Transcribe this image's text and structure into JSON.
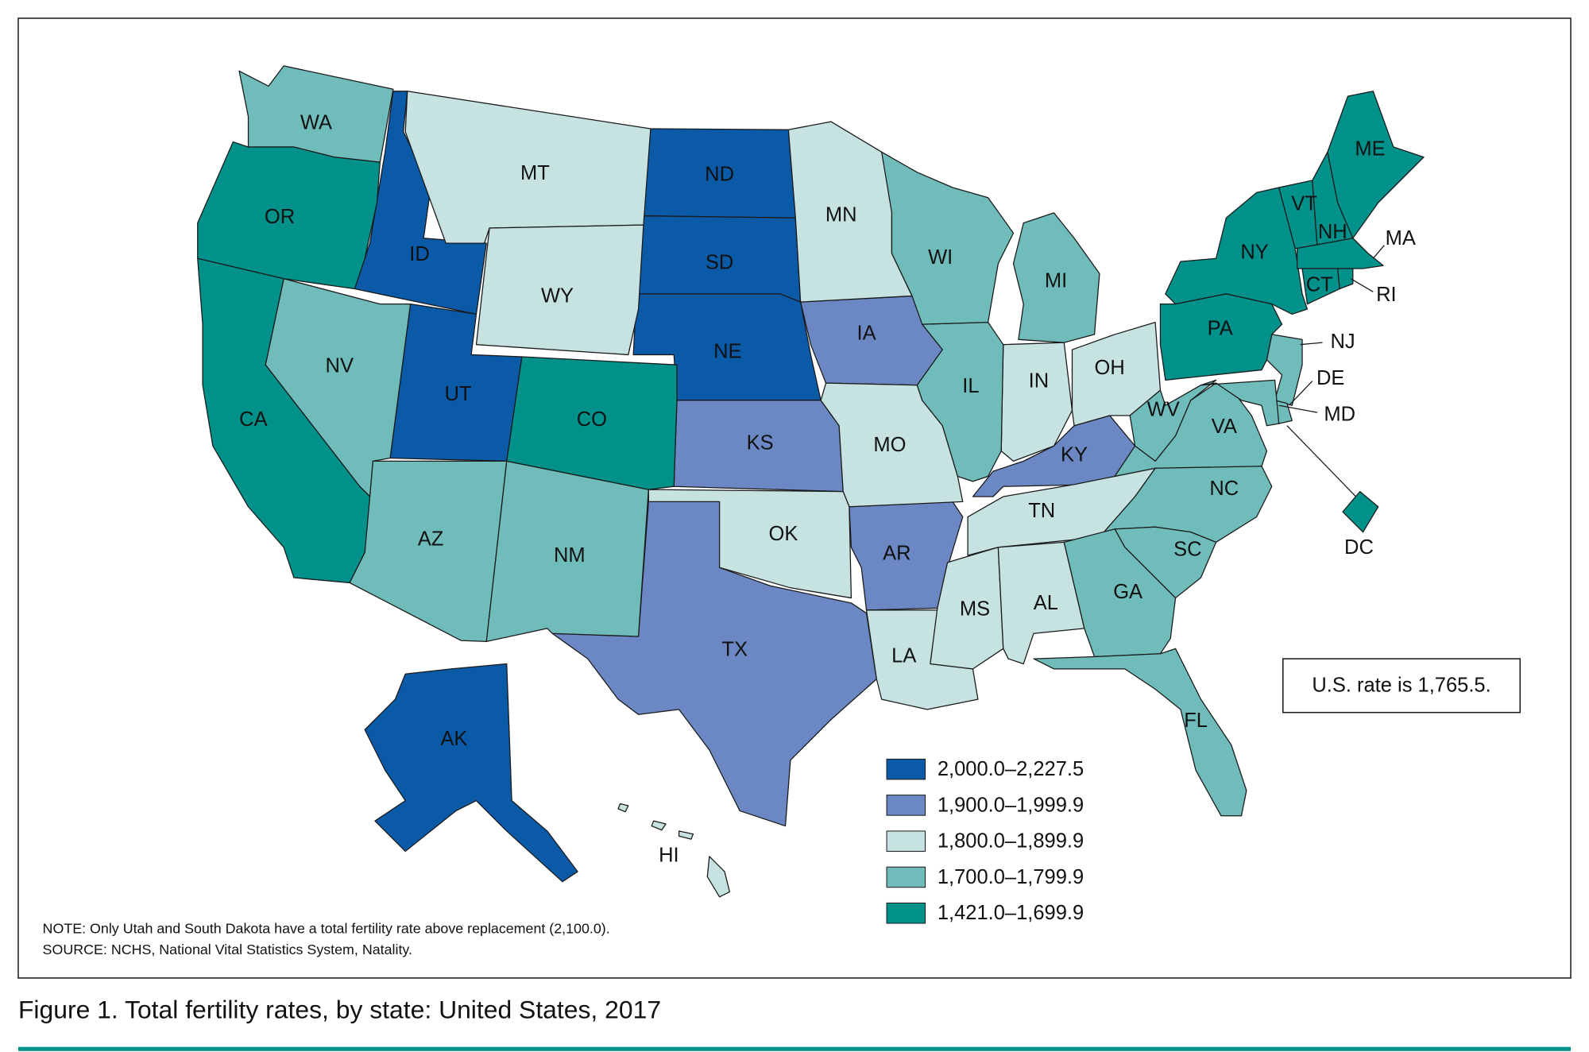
{
  "title": "Figure 1. Total fertility rates, by state: United States, 2017",
  "us_rate": "U.S. rate is 1,765.5.",
  "note": "NOTE: Only Utah and South Dakota have a total fertility rate above replacement (2,100.0).",
  "source": "SOURCE: NCHS, National Vital Statistics System, Natality.",
  "legend": [
    {
      "label": "2,000.0–2,227.5",
      "color": "#0a5aa8",
      "states": [
        "ID",
        "UT",
        "ND",
        "SD",
        "NE",
        "AK"
      ]
    },
    {
      "label": "1,900.0–1,999.9",
      "color": "#6b88c4",
      "states": [
        "IA",
        "KS",
        "TX",
        "AR",
        "KY"
      ]
    },
    {
      "label": "1,800.0–1,899.9",
      "color": "#c6e3e2",
      "states": [
        "MT",
        "WY",
        "MN",
        "MO",
        "OK",
        "LA",
        "MS",
        "AL",
        "TN",
        "IN",
        "OH",
        "HI"
      ]
    },
    {
      "label": "1,700.0–1,799.9",
      "color": "#6fbcba",
      "states": [
        "WA",
        "NV",
        "AZ",
        "NM",
        "IL",
        "WI",
        "MI",
        "WV",
        "VA",
        "NC",
        "SC",
        "GA",
        "FL",
        "NJ",
        "DE",
        "MD"
      ]
    },
    {
      "label": "1,421.0–1,699.9",
      "color": "#00918a",
      "states": [
        "OR",
        "CA",
        "CO",
        "NY",
        "PA",
        "VT",
        "NH",
        "ME",
        "MA",
        "CT",
        "RI",
        "DC"
      ]
    }
  ]
}
